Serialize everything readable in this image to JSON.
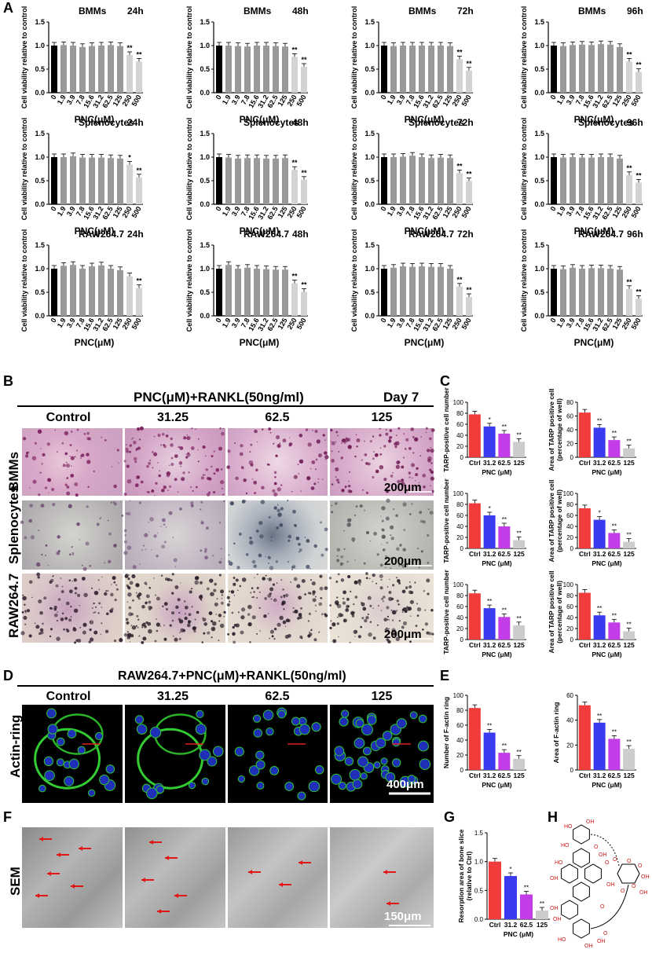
{
  "panel_labels": {
    "A": "A",
    "B": "B",
    "C": "C",
    "D": "D",
    "E": "E",
    "F": "F",
    "G": "G",
    "H": "H"
  },
  "panel_a": {
    "ylabel": "Cell viability relative to control",
    "xlabel": "PNC(μM)",
    "categories": [
      "0",
      "1.9",
      "3.9",
      "7.8",
      "15.6",
      "31.2",
      "62.5",
      "125",
      "250",
      "500"
    ],
    "cells": [
      "BMMs",
      "Splenocytes",
      "RAW264.7"
    ],
    "times": [
      "24h",
      "48h",
      "72h",
      "96h"
    ]
  },
  "chart_data": [
    {
      "type": "bar",
      "cell": "BMMs",
      "time": "24h",
      "ylim": [
        0,
        1.5
      ],
      "yticks": [
        "0.0",
        "0.5",
        "1.0",
        "1.5"
      ],
      "values": [
        1.0,
        1.01,
        1.0,
        0.97,
        0.99,
        1.0,
        1.01,
        0.99,
        0.8,
        0.66
      ],
      "sig": [
        "",
        "",
        "",
        "",
        "",
        "",
        "",
        "",
        "**",
        "**"
      ]
    },
    {
      "type": "bar",
      "cell": "BMMs",
      "time": "48h",
      "ylim": [
        0,
        1.5
      ],
      "yticks": [
        "0.0",
        "0.5",
        "1.0",
        "1.5"
      ],
      "values": [
        1.0,
        1.0,
        0.99,
        0.98,
        1.0,
        1.0,
        0.99,
        0.98,
        0.76,
        0.55
      ],
      "sig": [
        "",
        "",
        "",
        "",
        "",
        "",
        "",
        "",
        "**",
        "**"
      ]
    },
    {
      "type": "bar",
      "cell": "BMMs",
      "time": "72h",
      "ylim": [
        0,
        1.5
      ],
      "yticks": [
        "0.0",
        "0.5",
        "1.0",
        "1.5"
      ],
      "values": [
        1.0,
        0.99,
        1.0,
        1.0,
        1.0,
        1.0,
        1.0,
        0.99,
        0.71,
        0.47
      ],
      "sig": [
        "",
        "",
        "",
        "",
        "",
        "",
        "",
        "",
        "**",
        "**"
      ]
    },
    {
      "type": "bar",
      "cell": "BMMs",
      "time": "96h",
      "ylim": [
        0,
        1.5
      ],
      "yticks": [
        "0.0",
        "0.5",
        "1.0",
        "1.5"
      ],
      "values": [
        1.0,
        0.99,
        1.01,
        1.02,
        1.01,
        1.03,
        1.02,
        0.97,
        0.66,
        0.44
      ],
      "sig": [
        "",
        "",
        "",
        "",
        "",
        "",
        "",
        "",
        "**",
        "**"
      ]
    },
    {
      "type": "bar",
      "cell": "Splenocytes",
      "time": "24h",
      "ylim": [
        0,
        1.5
      ],
      "yticks": [
        "0.0",
        "0.5",
        "1.0",
        "1.5"
      ],
      "values": [
        1.0,
        1.0,
        1.02,
        0.99,
        0.99,
        0.99,
        0.98,
        0.97,
        0.84,
        0.57
      ],
      "sig": [
        "",
        "",
        "",
        "",
        "",
        "",
        "",
        "",
        "*",
        "**"
      ]
    },
    {
      "type": "bar",
      "cell": "Splenocytes",
      "time": "48h",
      "ylim": [
        0,
        1.5
      ],
      "yticks": [
        "0.0",
        "0.5",
        "1.0",
        "1.5"
      ],
      "values": [
        1.0,
        0.99,
        0.97,
        0.98,
        0.98,
        0.97,
        0.97,
        0.98,
        0.73,
        0.52
      ],
      "sig": [
        "",
        "",
        "",
        "",
        "",
        "",
        "",
        "",
        "**",
        "**"
      ]
    },
    {
      "type": "bar",
      "cell": "Splenocytes",
      "time": "72h",
      "ylim": [
        0,
        1.5
      ],
      "yticks": [
        "0.0",
        "0.5",
        "1.0",
        "1.5"
      ],
      "values": [
        1.0,
        1.0,
        1.01,
        1.03,
        1.0,
        0.98,
        0.99,
        0.98,
        0.66,
        0.49
      ],
      "sig": [
        "",
        "",
        "",
        "",
        "",
        "",
        "",
        "",
        "**",
        "**"
      ]
    },
    {
      "type": "bar",
      "cell": "Splenocytes",
      "time": "96h",
      "ylim": [
        0,
        1.5
      ],
      "yticks": [
        "0.0",
        "0.5",
        "1.0",
        "1.5"
      ],
      "values": [
        1.0,
        0.99,
        1.0,
        0.99,
        0.99,
        1.0,
        1.0,
        0.97,
        0.62,
        0.46
      ],
      "sig": [
        "",
        "",
        "",
        "",
        "",
        "",
        "",
        "",
        "**",
        "**"
      ]
    },
    {
      "type": "bar",
      "cell": "RAW264.7",
      "time": "24h",
      "ylim": [
        0,
        1.5
      ],
      "yticks": [
        "0.0",
        "0.5",
        "1.0",
        "1.5"
      ],
      "values": [
        1.0,
        1.06,
        1.08,
        1.0,
        1.05,
        1.07,
        1.0,
        0.97,
        0.84,
        0.59
      ],
      "sig": [
        "",
        "",
        "",
        "",
        "",
        "",
        "",
        "",
        "",
        "**"
      ]
    },
    {
      "type": "bar",
      "cell": "RAW264.7",
      "time": "48h",
      "ylim": [
        0,
        1.5
      ],
      "yticks": [
        "0.0",
        "0.5",
        "1.0",
        "1.5"
      ],
      "values": [
        1.0,
        1.08,
        1.0,
        1.02,
        1.0,
        0.99,
        0.98,
        0.98,
        0.69,
        0.51
      ],
      "sig": [
        "",
        "",
        "",
        "",
        "",
        "",
        "",
        "",
        "**",
        "**"
      ]
    },
    {
      "type": "bar",
      "cell": "RAW264.7",
      "time": "72h",
      "ylim": [
        0,
        1.5
      ],
      "yticks": [
        "0.0",
        "0.5",
        "1.0",
        "1.5"
      ],
      "values": [
        1.0,
        1.02,
        1.05,
        1.04,
        1.05,
        1.04,
        1.04,
        1.0,
        0.62,
        0.4
      ],
      "sig": [
        "",
        "",
        "",
        "",
        "",
        "",
        "",
        "",
        "**",
        "**"
      ]
    },
    {
      "type": "bar",
      "cell": "RAW264.7",
      "time": "96h",
      "ylim": [
        0,
        1.5
      ],
      "yticks": [
        "0.0",
        "0.5",
        "1.0",
        "1.5"
      ],
      "values": [
        1.0,
        0.99,
        1.02,
        1.0,
        1.01,
        1.01,
        1.0,
        0.98,
        0.57,
        0.36
      ],
      "sig": [
        "",
        "",
        "",
        "",
        "",
        "",
        "",
        "",
        "**",
        "**"
      ]
    },
    {
      "type": "bar",
      "panel": "C",
      "row": 1,
      "ylabel": "TARP-positive cell number",
      "xlabel": "PNC (μM)",
      "categories": [
        "Ctrl",
        "31.2",
        "62.5",
        "125"
      ],
      "values": [
        78,
        56,
        43,
        28
      ],
      "ylim": [
        0,
        100
      ],
      "yticks": [
        "0",
        "20",
        "40",
        "60",
        "80",
        "100"
      ],
      "sig": [
        "",
        "*",
        "**",
        "**"
      ]
    },
    {
      "type": "bar",
      "panel": "C",
      "row": 1,
      "ylabel": "Area of TARP positive cell (percentage of well)",
      "xlabel": "PNC (μM)",
      "categories": [
        "Ctrl",
        "31.2",
        "62.5",
        "125"
      ],
      "values": [
        65,
        43,
        25,
        13
      ],
      "ylim": [
        0,
        80
      ],
      "yticks": [
        "0",
        "20",
        "40",
        "60",
        "80"
      ],
      "sig": [
        "",
        "**",
        "**",
        "**"
      ]
    },
    {
      "type": "bar",
      "panel": "C",
      "row": 2,
      "ylabel": "TARP-positive cell number",
      "xlabel": "PNC (μM)",
      "categories": [
        "Ctrl",
        "31.2",
        "62.5",
        "125"
      ],
      "values": [
        82,
        60,
        40,
        15
      ],
      "ylim": [
        0,
        100
      ],
      "yticks": [
        "0",
        "20",
        "40",
        "60",
        "80",
        "100"
      ],
      "sig": [
        "",
        "*",
        "**",
        "**"
      ]
    },
    {
      "type": "bar",
      "panel": "C",
      "row": 2,
      "ylabel": "Area of TARP positive cell (percentage of well)",
      "xlabel": "PNC (μM)",
      "categories": [
        "Ctrl",
        "31.2",
        "62.5",
        "125"
      ],
      "values": [
        73,
        52,
        28,
        12
      ],
      "ylim": [
        0,
        100
      ],
      "yticks": [
        "0",
        "20",
        "40",
        "60",
        "80",
        "100"
      ],
      "sig": [
        "",
        "*",
        "**",
        "**"
      ]
    },
    {
      "type": "bar",
      "panel": "C",
      "row": 3,
      "ylabel": "TARP-positive cell number",
      "xlabel": "PNC (μM)",
      "categories": [
        "Ctrl",
        "31.2",
        "62.5",
        "125"
      ],
      "values": [
        84,
        57,
        41,
        26
      ],
      "ylim": [
        0,
        100
      ],
      "yticks": [
        "0",
        "20",
        "40",
        "60",
        "80",
        "100"
      ],
      "sig": [
        "",
        "**",
        "**",
        "**"
      ]
    },
    {
      "type": "bar",
      "panel": "C",
      "row": 3,
      "ylabel": "Area of TARP positive cell (percentage of well)",
      "xlabel": "PNC (μM)",
      "categories": [
        "Ctrl",
        "31.2",
        "62.5",
        "125"
      ],
      "values": [
        85,
        44,
        31,
        15
      ],
      "ylim": [
        0,
        100
      ],
      "yticks": [
        "0",
        "20",
        "40",
        "60",
        "80",
        "100"
      ],
      "sig": [
        "",
        "**",
        "**",
        "**"
      ]
    },
    {
      "type": "bar",
      "panel": "E",
      "ylabel": "Number of F-actin ring",
      "xlabel": "PNC (μM)",
      "categories": [
        "Ctrl",
        "31.2",
        "62.5",
        "125"
      ],
      "values": [
        83,
        50,
        23,
        15
      ],
      "ylim": [
        0,
        100
      ],
      "yticks": [
        "0",
        "20",
        "40",
        "60",
        "80",
        "100"
      ],
      "sig": [
        "",
        "**",
        "**",
        "**"
      ]
    },
    {
      "type": "bar",
      "panel": "E",
      "ylabel": "Area of F-actin ring",
      "xlabel": "PNC (μM)",
      "categories": [
        "Ctrl",
        "31.2",
        "62.5",
        "125"
      ],
      "values": [
        52,
        38,
        25,
        17
      ],
      "ylim": [
        0,
        60
      ],
      "yticks": [
        "0",
        "20",
        "40",
        "60"
      ],
      "sig": [
        "",
        "**",
        "**",
        "**"
      ]
    },
    {
      "type": "bar",
      "panel": "G",
      "ylabel": "Resorption area of bone slice (relative to Ctrl)",
      "xlabel": "PNC (μM)",
      "categories": [
        "Ctrl",
        "31.2",
        "62.5",
        "125"
      ],
      "values": [
        1.0,
        0.75,
        0.43,
        0.15
      ],
      "ylim": [
        0,
        1.5
      ],
      "yticks": [
        "0.0",
        "0.5",
        "1.0",
        "1.5"
      ],
      "sig": [
        "",
        "*",
        "**",
        "**"
      ]
    }
  ],
  "panel_b": {
    "title": "PNC(μM)+RANKL(50ng/ml)",
    "day": "Day 7",
    "columns": [
      "Control",
      "31.25",
      "62.5",
      "125"
    ],
    "rows": [
      "BMMs",
      "Splenocytes",
      "RAW264.7"
    ],
    "scale": "200μm"
  },
  "panel_d": {
    "title": "RAW264.7+PNC(μM)+RANKL(50ng/ml)",
    "columns": [
      "Control",
      "31.25",
      "62.5",
      "125"
    ],
    "row": "Actin-ring",
    "scale": "400μm"
  },
  "panel_f": {
    "row": "SEM",
    "scale": "150μm"
  },
  "colors": {
    "control": "#000000",
    "treated": "#999999",
    "high_dose": "#d3d3d3",
    "ctrl_red": "#f23c3c",
    "blue": "#3a3af0",
    "purple": "#c23ce8",
    "light": "#cccccc",
    "structure_red": "#d01818"
  },
  "panel_h": {
    "atom_labels": [
      "HO",
      "OH",
      "HO",
      "HO",
      "O",
      "OH",
      "O",
      "O",
      "O",
      "O",
      "O",
      "OH",
      "OH",
      "O",
      "OH",
      "OH",
      "OH",
      "O",
      "HO",
      "OH",
      "O",
      "OH",
      "OH"
    ]
  }
}
